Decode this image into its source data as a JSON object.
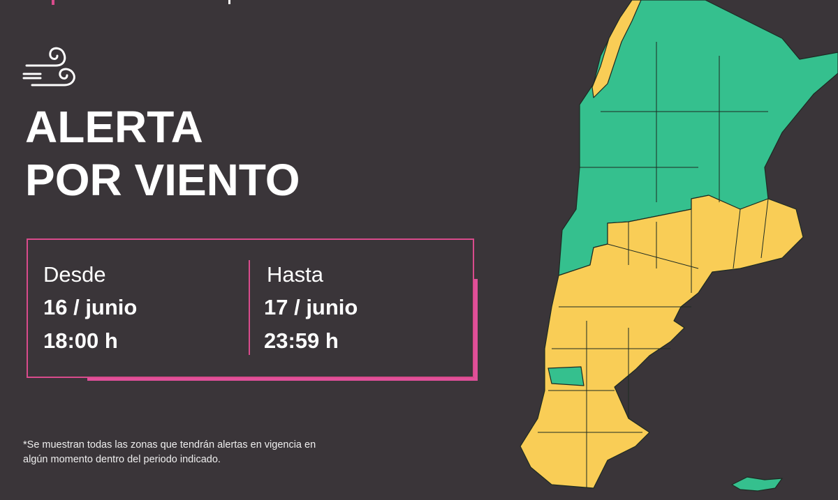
{
  "header": {
    "title_line1": "ALERTA",
    "title_line2": "POR VIENTO",
    "icon": "wind-icon"
  },
  "period": {
    "from": {
      "label": "Desde",
      "date": "16 / junio",
      "time": "18:00 h"
    },
    "to": {
      "label": "Hasta",
      "date": "17 / junio",
      "time": "23:59 h"
    }
  },
  "note": "*Se muestran todas las zonas que tendrán alertas en vigencia en algún momento dentro del periodo indicado.",
  "colors": {
    "background": "#3a3539",
    "accent": "#e0509a",
    "alert_yellow": "#f9cd56",
    "no_alert_green": "#35c08e"
  }
}
